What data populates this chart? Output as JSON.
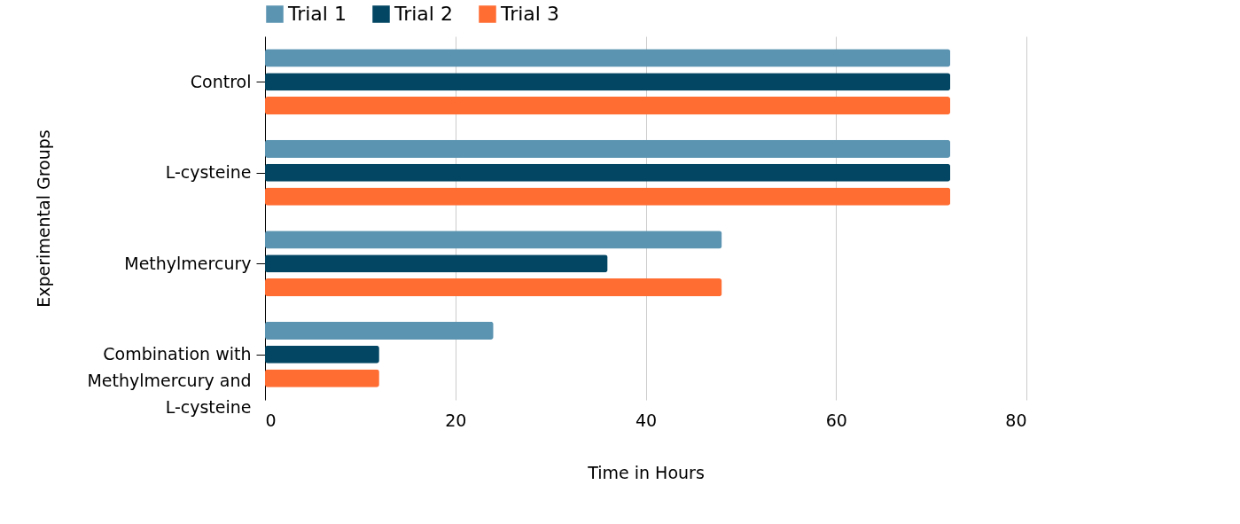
{
  "chart_data": {
    "type": "bar",
    "orientation": "horizontal",
    "xlabel": "Time in Hours",
    "ylabel": "Experimental Groups",
    "categories": [
      "Control",
      "L-cysteine",
      "Methylmercury",
      "Combination with Methylmercury and L-cysteine"
    ],
    "series": [
      {
        "name": "Trial 1",
        "color": "#5b94b1",
        "values": [
          72,
          72,
          48,
          24
        ]
      },
      {
        "name": "Trial 2",
        "color": "#034663",
        "values": [
          72,
          72,
          36,
          12
        ]
      },
      {
        "name": "Trial 3",
        "color": "#ff6d33",
        "values": [
          72,
          72,
          48,
          12
        ]
      }
    ],
    "xlim": [
      0,
      80
    ],
    "xticks": [
      0,
      20,
      40,
      60,
      80
    ],
    "grid": "x",
    "legend": "top"
  }
}
